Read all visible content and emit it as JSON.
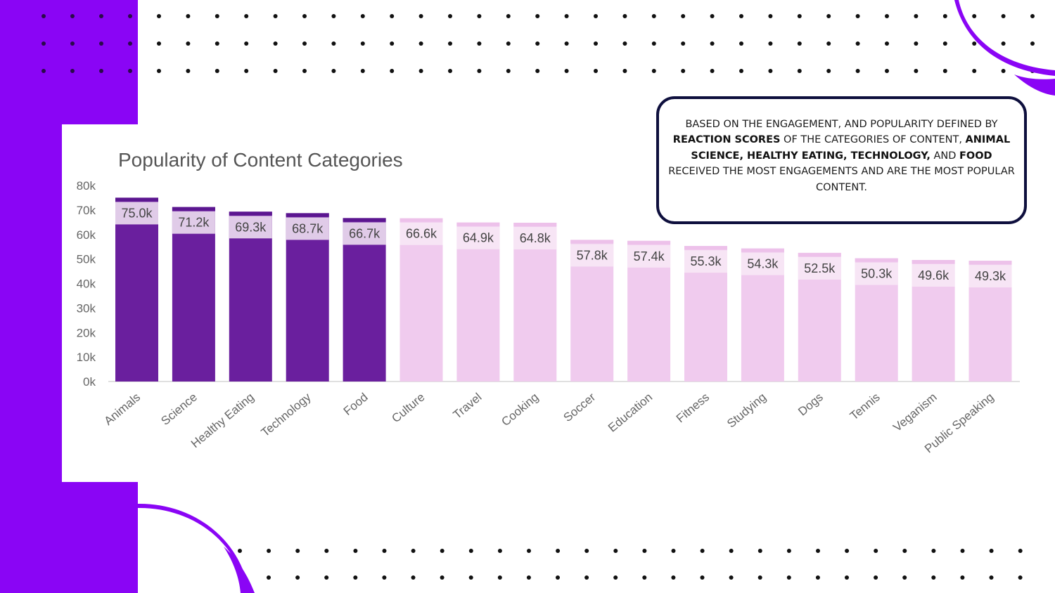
{
  "colors": {
    "panel_purple": "#8a05f5",
    "highlight_bar": "#6a1f9e",
    "highlight_cap": "#5b1690",
    "highlight_label_bg": "#e0cbe8",
    "regular_bar": "#f0cbee",
    "regular_cap": "#edc1ea",
    "regular_label_bg": "#f7e5f5",
    "dot": "#111111",
    "axis_text": "#666666",
    "title_text": "#555555",
    "callout_border": "#0e0f3d"
  },
  "callout": {
    "segments": [
      {
        "text": "BASED ON THE ENGAGEMENT, AND POPULARITY DEFINED BY ",
        "bold": false
      },
      {
        "text": "REACTION SCORES",
        "bold": true
      },
      {
        "text": " OF THE CATEGORIES OF CONTENT, ",
        "bold": false
      },
      {
        "text": "ANIMAL SCIENCE, HEALTHY EATING, TECHNOLOGY,",
        "bold": true
      },
      {
        "text": " AND ",
        "bold": false
      },
      {
        "text": "FOOD",
        "bold": true
      },
      {
        "text": " RECEIVED THE MOST ENGAGEMENTS AND ARE THE MOST POPULAR CONTENT.",
        "bold": false
      }
    ]
  },
  "chart_data": {
    "type": "bar",
    "title": "Popularity of Content Categories",
    "xlabel": "",
    "ylabel": "",
    "ylim": [
      0,
      80
    ],
    "yticks": [
      0,
      10,
      20,
      30,
      40,
      50,
      60,
      70,
      80
    ],
    "ytick_labels": [
      "0k",
      "10k",
      "20k",
      "30k",
      "40k",
      "50k",
      "60k",
      "70k",
      "80k"
    ],
    "grid": false,
    "legend": "none",
    "categories": [
      "Animals",
      "Science",
      "Healthy Eating",
      "Technology",
      "Food",
      "Culture",
      "Travel",
      "Cooking",
      "Soccer",
      "Education",
      "Fitness",
      "Studying",
      "Dogs",
      "Tennis",
      "Veganism",
      "Public Speaking"
    ],
    "values": [
      75.0,
      71.2,
      69.3,
      68.7,
      66.7,
      66.6,
      64.9,
      64.8,
      57.8,
      57.4,
      55.3,
      54.3,
      52.5,
      50.3,
      49.6,
      49.3
    ],
    "value_labels": [
      "75.0k",
      "71.2k",
      "69.3k",
      "68.7k",
      "66.7k",
      "66.6k",
      "64.9k",
      "64.8k",
      "57.8k",
      "57.4k",
      "55.3k",
      "54.3k",
      "52.5k",
      "50.3k",
      "49.6k",
      "49.3k"
    ],
    "highlighted": [
      true,
      true,
      true,
      true,
      true,
      false,
      false,
      false,
      false,
      false,
      false,
      false,
      false,
      false,
      false,
      false
    ]
  }
}
